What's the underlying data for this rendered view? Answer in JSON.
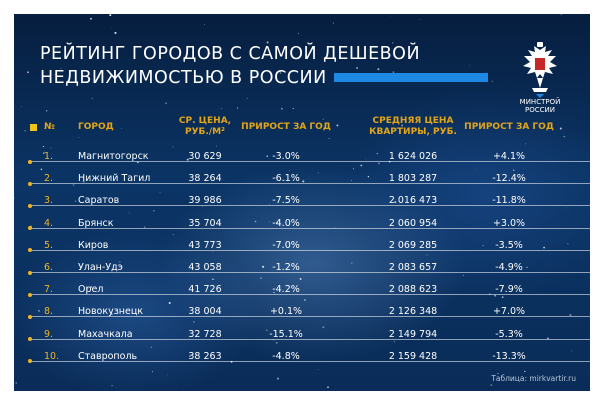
{
  "title": {
    "line1": "РЕЙТИНГ ГОРОДОВ С САМОЙ ДЕШЕВОЙ",
    "line2": "НЕДВИЖИМОСТЬЮ В РОССИИ"
  },
  "logo": {
    "line1": "МИНСТРОЙ",
    "line2": "РОССИИ"
  },
  "table": {
    "columns": {
      "rank": "№",
      "city": "ГОРОД",
      "price_1": "СР. ЦЕНА,",
      "price_2": "РУБ./М²",
      "growth_1": "ПРИРОСТ ЗА ГОД",
      "apt_1": "СРЕДНЯЯ ЦЕНА",
      "apt_2": "КВАРТИРЫ, РУБ.",
      "growth_2": "ПРИРОСТ ЗА ГОД"
    },
    "rows": [
      {
        "rank": "1.",
        "city": "Магнитогорск",
        "price": "30 629",
        "growth_sqm": "-3.0%",
        "apt_price": "1 624 026",
        "growth_apt": "+4.1%"
      },
      {
        "rank": "2.",
        "city": "Нижний Тагил",
        "price": "38 264",
        "growth_sqm": "-6.1%",
        "apt_price": "1 803 287",
        "growth_apt": "-12.4%"
      },
      {
        "rank": "3.",
        "city": "Саратов",
        "price": "39 986",
        "growth_sqm": "-7.5%",
        "apt_price": "2 016 473",
        "growth_apt": "-11.8%"
      },
      {
        "rank": "4.",
        "city": "Брянск",
        "price": "35 704",
        "growth_sqm": "-4.0%",
        "apt_price": "2 060 954",
        "growth_apt": "+3.0%"
      },
      {
        "rank": "5.",
        "city": "Киров",
        "price": "43 773",
        "growth_sqm": "-7.0%",
        "apt_price": "2 069 285",
        "growth_apt": "-3.5%"
      },
      {
        "rank": "6.",
        "city": "Улан-Удэ",
        "price": "43 058",
        "growth_sqm": "-1.2%",
        "apt_price": "2 083 657",
        "growth_apt": "-4.9%"
      },
      {
        "rank": "7.",
        "city": "Орел",
        "price": "41 726",
        "growth_sqm": "-4.2%",
        "apt_price": "2 088 623",
        "growth_apt": "-7.9%"
      },
      {
        "rank": "8.",
        "city": "Новокузнецк",
        "price": "38 004",
        "growth_sqm": "+0.1%",
        "apt_price": "2 126 348",
        "growth_apt": "+7.0%"
      },
      {
        "rank": "9.",
        "city": "Махачкала",
        "price": "32 728",
        "growth_sqm": "-15.1%",
        "apt_price": "2 149 794",
        "growth_apt": "-5.3%"
      },
      {
        "rank": "10.",
        "city": "Ставрополь",
        "price": "38 263",
        "growth_sqm": "-4.8%",
        "apt_price": "2 159 428",
        "growth_apt": "-13.3%"
      }
    ]
  },
  "source": "Таблица: mirkvartir.ru",
  "colors": {
    "accent": "#f2b31c",
    "title_bar": "#1e88e5",
    "background": "#0b3566"
  }
}
